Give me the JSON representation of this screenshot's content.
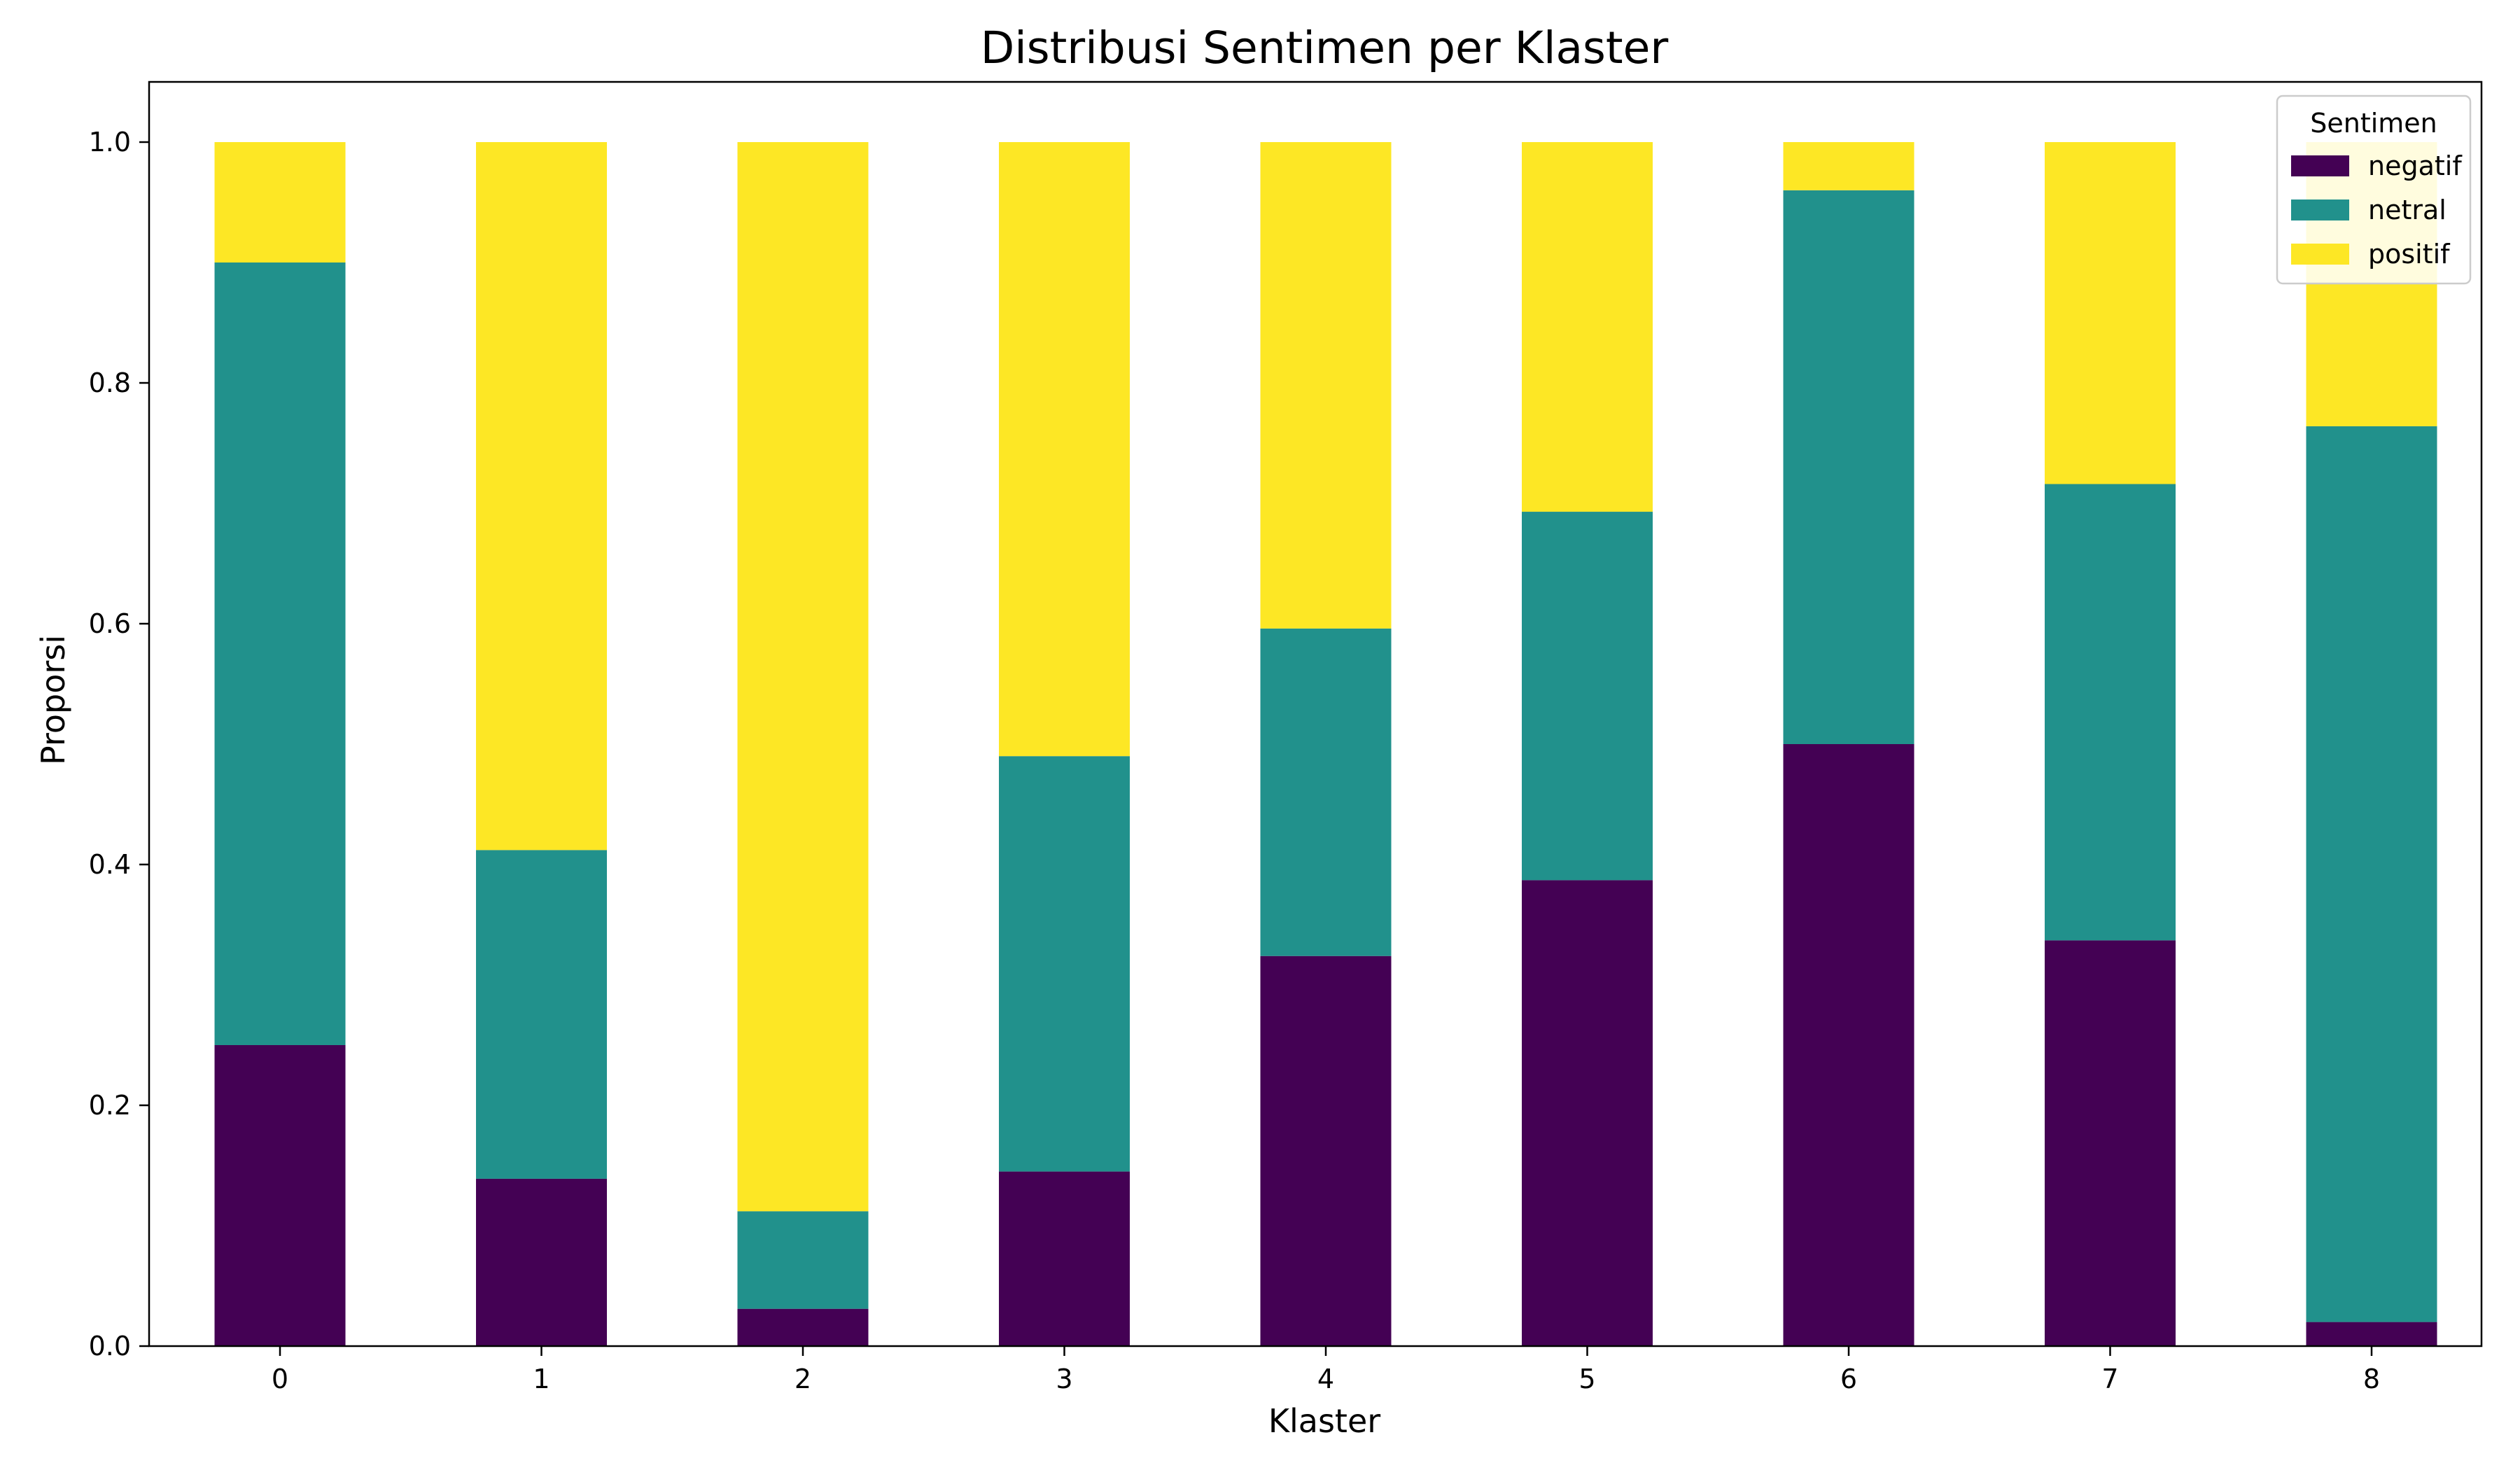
{
  "chart_data": {
    "type": "bar",
    "stacked": true,
    "title": "Distribusi Sentimen per Klaster",
    "xlabel": "Klaster",
    "ylabel": "Proporsi",
    "categories": [
      "0",
      "1",
      "2",
      "3",
      "4",
      "5",
      "6",
      "7",
      "8"
    ],
    "ylim": [
      0,
      1.05
    ],
    "yticks": [
      "0.0",
      "0.2",
      "0.4",
      "0.6",
      "0.8",
      "1.0"
    ],
    "grid": false,
    "legend": {
      "title": "Sentimen",
      "placement": "top-right"
    },
    "series": [
      {
        "name": "negatif",
        "color": "#440154",
        "values": [
          0.25,
          0.139,
          0.031,
          0.145,
          0.324,
          0.387,
          0.5,
          0.337,
          0.02
        ]
      },
      {
        "name": "netral",
        "color": "#21918c",
        "values": [
          0.65,
          0.273,
          0.081,
          0.345,
          0.272,
          0.306,
          0.46,
          0.379,
          0.744
        ]
      },
      {
        "name": "positif",
        "color": "#fde725",
        "values": [
          0.1,
          0.588,
          0.888,
          0.51,
          0.404,
          0.307,
          0.04,
          0.284,
          0.236
        ]
      }
    ]
  }
}
